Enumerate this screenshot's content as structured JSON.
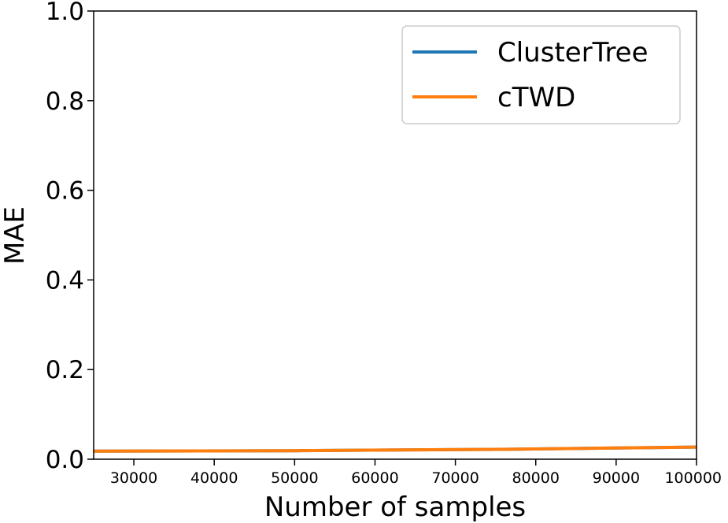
{
  "chart_data": {
    "type": "line",
    "title": "",
    "xlabel": "Number of samples",
    "ylabel": "MAE",
    "xlim": [
      25000,
      100000
    ],
    "ylim": [
      0.0,
      1.0
    ],
    "xticks": [
      30000,
      40000,
      50000,
      60000,
      70000,
      80000,
      90000,
      100000
    ],
    "yticks": [
      0.0,
      0.2,
      0.4,
      0.6,
      0.8,
      1.0
    ],
    "xtick_labels": [
      "30000",
      "40000",
      "50000",
      "60000",
      "70000",
      "80000",
      "90000",
      "100000"
    ],
    "ytick_labels": [
      "0.0",
      "0.2",
      "0.4",
      "0.6",
      "0.8",
      "1.0"
    ],
    "grid": false,
    "legend_position": "top-right",
    "x": [
      25000,
      50000,
      75000,
      100000
    ],
    "series": [
      {
        "name": "ClusterTree",
        "color": "#1f77b4",
        "values": [
          0.018,
          0.019,
          0.022,
          0.027
        ]
      },
      {
        "name": "cTWD",
        "color": "#ff7f0e",
        "values": [
          0.018,
          0.019,
          0.022,
          0.027
        ]
      }
    ]
  }
}
